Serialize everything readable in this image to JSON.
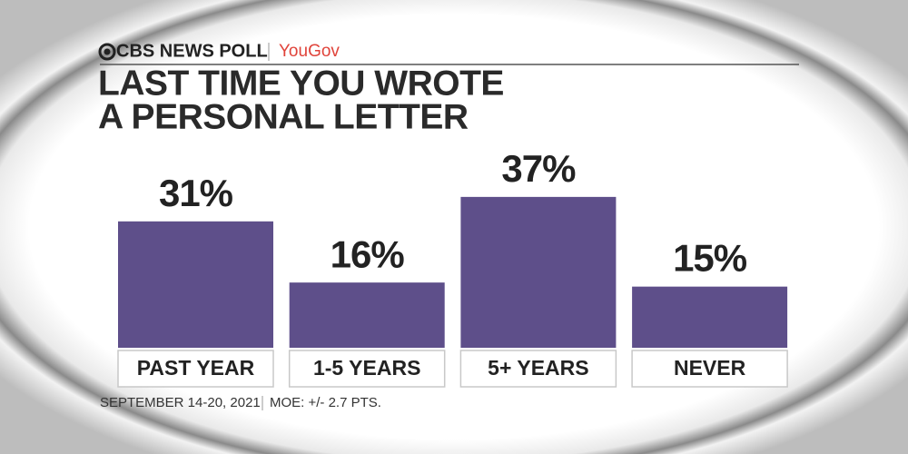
{
  "chart_data": {
    "type": "bar",
    "brand": "CBS NEWS POLL",
    "partner": "YouGov",
    "title": [
      "LAST TIME YOU WROTE",
      "A PERSONAL LETTER"
    ],
    "categories": [
      "PAST YEAR",
      "1-5 YEARS",
      "5+ YEARS",
      "NEVER"
    ],
    "values": [
      31,
      16,
      37,
      15
    ],
    "value_labels": [
      "31%",
      "16%",
      "37%",
      "15%"
    ],
    "color": "#5e4f8a",
    "footnotes": [
      "SEPTEMBER 14-20, 2021",
      "MOE: +/- 2.7 PTS."
    ]
  }
}
